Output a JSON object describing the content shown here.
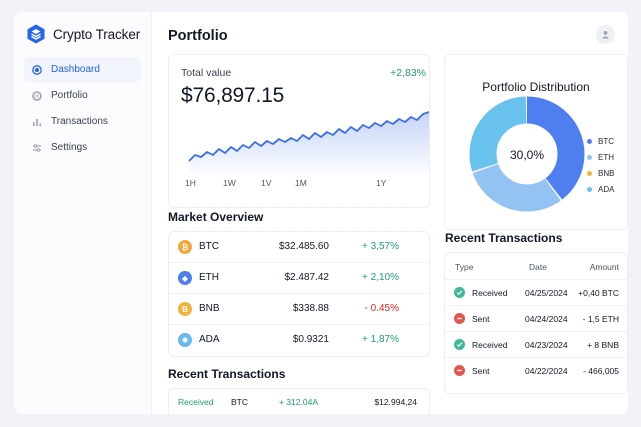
{
  "app": {
    "name": "Crypto Tracker",
    "brand_color": "#2563eb"
  },
  "sidebar": {
    "items": [
      {
        "label": "Dashboard",
        "icon": "dashboard-icon",
        "active": true
      },
      {
        "label": "Portfolio",
        "icon": "portfolio-icon",
        "active": false
      },
      {
        "label": "Transactions",
        "icon": "transactions-icon",
        "active": false
      },
      {
        "label": "Settings",
        "icon": "settings-icon",
        "active": false
      }
    ]
  },
  "header": {
    "title": "Portfolio",
    "user_icon": "user-icon"
  },
  "total": {
    "label": "Total value",
    "value": "$76,897.15",
    "change": "+2,83%",
    "ranges": [
      "1H",
      "1W",
      "1V",
      "1M",
      "1Y"
    ]
  },
  "distribution": {
    "title": "Portfolio Distribution",
    "center": "30,0%",
    "segments": [
      {
        "name": "BTC",
        "color": "#4f7ef0",
        "value": 40
      },
      {
        "name": "ETH",
        "color": "#93c3f3",
        "value": 30
      },
      {
        "name": "BNB",
        "color": "#f2b33a",
        "value": 0
      },
      {
        "name": "ADA",
        "color": "#69c1ee",
        "value": 30
      }
    ]
  },
  "market": {
    "title": "Market Overview",
    "rows": [
      {
        "symbol": "BTC",
        "price": "$32.485.60",
        "change": "+ 3,57%",
        "trend": "pos",
        "icon": "bitcoin-icon",
        "color": "#f2a93b",
        "glyph": "₿"
      },
      {
        "symbol": "ETH",
        "price": "$2.487.42",
        "change": "+ 2,10%",
        "trend": "pos",
        "icon": "ethereum-icon",
        "color": "#4f7ef0",
        "glyph": "◆"
      },
      {
        "symbol": "BNB",
        "price": "$338.88",
        "change": "- 0.45%",
        "trend": "neg",
        "icon": "bnb-icon",
        "color": "#f2b33a",
        "glyph": "B"
      },
      {
        "symbol": "ADA",
        "price": "$0.9321",
        "change": "+ 1,87%",
        "trend": "pos",
        "icon": "cardano-icon",
        "color": "#69b8ee",
        "glyph": "✺"
      }
    ]
  },
  "recent_right": {
    "title": "Recent Transactions",
    "columns": [
      "Type",
      "Date",
      "Amount"
    ],
    "rows": [
      {
        "type": "Received",
        "date": "04/25/2024",
        "amount": "+0,40 BTC",
        "icon": "check-icon",
        "status": "in"
      },
      {
        "type": "Sent",
        "date": "04/24/2024",
        "amount": "- 1,5 ETH",
        "icon": "minus-icon",
        "status": "out"
      },
      {
        "type": "Received",
        "date": "04/23/2024",
        "amount": "+ 8 BNB",
        "icon": "check-icon",
        "status": "in"
      },
      {
        "type": "Sent",
        "date": "04/22/2024",
        "amount": "- 466,005",
        "icon": "minus-icon",
        "status": "out"
      }
    ]
  },
  "recent_left": {
    "title": "Recent Transactions",
    "row": {
      "type": "Received",
      "symbol": "BTC",
      "amount": "+ 312.04A",
      "value": "$12.994,24"
    }
  },
  "colors": {
    "positive": "#1f9d72",
    "negative": "#dc2626",
    "received": "#3fb89a",
    "sent": "#e2574c"
  }
}
